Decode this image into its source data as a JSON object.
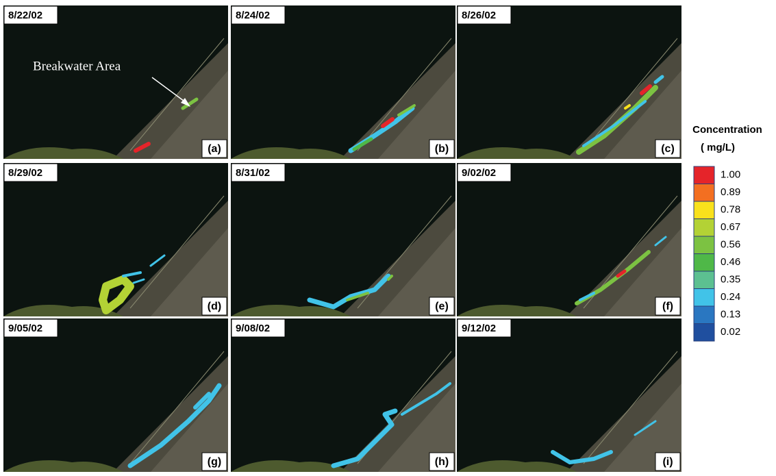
{
  "panels": [
    {
      "date": "8/22/02",
      "label": "(a)"
    },
    {
      "date": "8/24/02",
      "label": "(b)"
    },
    {
      "date": "8/26/02",
      "label": "(c)"
    },
    {
      "date": "8/29/02",
      "label": "(d)"
    },
    {
      "date": "8/31/02",
      "label": "(e)"
    },
    {
      "date": "9/02/02",
      "label": "(f)"
    },
    {
      "date": "9/05/02",
      "label": "(g)"
    },
    {
      "date": "9/08/02",
      "label": "(h)"
    },
    {
      "date": "9/12/02",
      "label": "(i)"
    }
  ],
  "annotation": "Breakwater Area",
  "legend": {
    "title": "Concentration",
    "unit": "( mg/L)",
    "levels": [
      {
        "value": 1,
        "label": "1.00",
        "color": "#e5242a"
      },
      {
        "value": 0.89,
        "label": "0.89",
        "color": "#f36f21"
      },
      {
        "value": 0.78,
        "label": "0.78",
        "color": "#f9e11c"
      },
      {
        "value": 0.67,
        "label": "0.67",
        "color": "#b3d235"
      },
      {
        "value": 0.56,
        "label": "0.56",
        "color": "#7cc242"
      },
      {
        "value": 0.46,
        "label": "0.46",
        "color": "#4fb848"
      },
      {
        "value": 0.35,
        "label": "0.35",
        "color": "#5cc091"
      },
      {
        "value": 0.24,
        "label": "0.24",
        "color": "#41c3e8"
      },
      {
        "value": 0.13,
        "label": "0.13",
        "color": "#2a77c1"
      },
      {
        "value": 0.02,
        "label": "0.02",
        "color": "#1f4f9f"
      }
    ]
  }
}
